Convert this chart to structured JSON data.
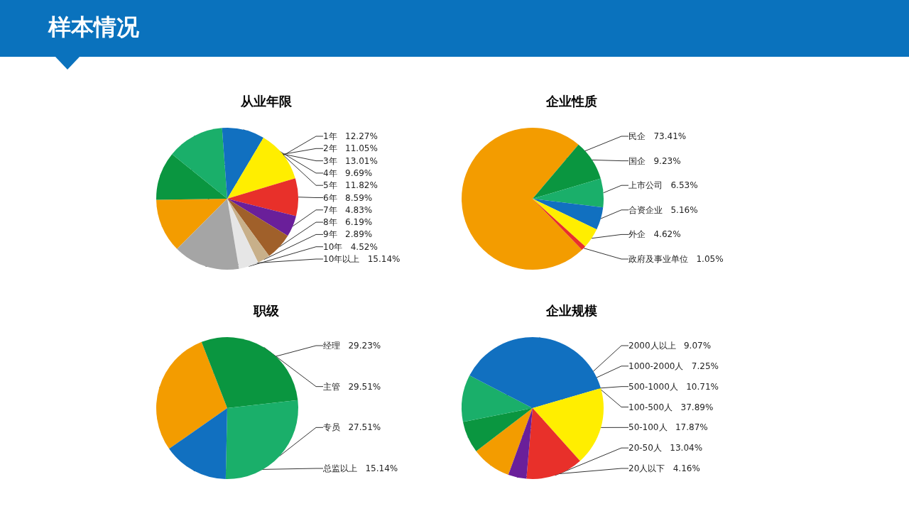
{
  "chart_data": [
    {
      "type": "other",
      "title": "样本情况"
    },
    {
      "type": "pie",
      "title": "从业年限",
      "categories": [
        "1年",
        "2年",
        "3年",
        "4年",
        "5年",
        "6年",
        "7年",
        "8年",
        "9年",
        "10年",
        "10年以上"
      ],
      "values": [
        12.27,
        11.05,
        13.01,
        9.69,
        11.82,
        8.59,
        4.83,
        6.19,
        2.89,
        4.52,
        15.14
      ],
      "value_labels": [
        "12.27%",
        "11.05%",
        "13.01%",
        "9.69%",
        "11.82%",
        "8.59%",
        "4.83%",
        "6.19%",
        "2.89%",
        "4.52%",
        "15.14%"
      ],
      "colors": [
        "#f39c00",
        "#0a9640",
        "#1aaf6a",
        "#1170c0",
        "#ffee00",
        "#e8302a",
        "#6a1f9a",
        "#a0602a",
        "#c8b08a",
        "#e6e6e6",
        "#a5a5a5"
      ]
    },
    {
      "type": "pie",
      "title": "企业性质",
      "categories": [
        "民企",
        "国企",
        "上市公司",
        "合资企业",
        "外企",
        "政府及事业单位"
      ],
      "values": [
        73.41,
        9.23,
        6.53,
        5.16,
        4.62,
        1.05
      ],
      "value_labels": [
        "73.41%",
        "9.23%",
        "6.53%",
        "5.16%",
        "4.62%",
        "1.05%"
      ],
      "colors": [
        "#f39c00",
        "#0a9640",
        "#1aaf6a",
        "#1170c0",
        "#ffee00",
        "#e8302a"
      ]
    },
    {
      "type": "pie",
      "title": "职级",
      "categories": [
        "经理",
        "主管",
        "专员",
        "总监以上"
      ],
      "values": [
        29.23,
        29.51,
        27.51,
        15.14
      ],
      "value_labels": [
        "29.23%",
        "29.51%",
        "27.51%",
        "15.14%"
      ],
      "colors": [
        "#f39c00",
        "#0a9640",
        "#1aaf6a",
        "#1170c0"
      ]
    },
    {
      "type": "pie",
      "title": "企业规模",
      "categories": [
        "2000人以上",
        "1000-2000人",
        "500-1000人",
        "100-500人",
        "50-100人",
        "20-50人",
        "20人以下"
      ],
      "values": [
        9.07,
        7.25,
        10.71,
        37.89,
        17.87,
        13.04,
        4.16
      ],
      "value_labels": [
        "9.07%",
        "7.25%",
        "10.71%",
        "37.89%",
        "17.87%",
        "13.04%",
        "4.16%"
      ],
      "colors": [
        "#f39c00",
        "#0a9640",
        "#1aaf6a",
        "#1170c0",
        "#ffee00",
        "#e8302a",
        "#6a1f9a"
      ]
    }
  ]
}
